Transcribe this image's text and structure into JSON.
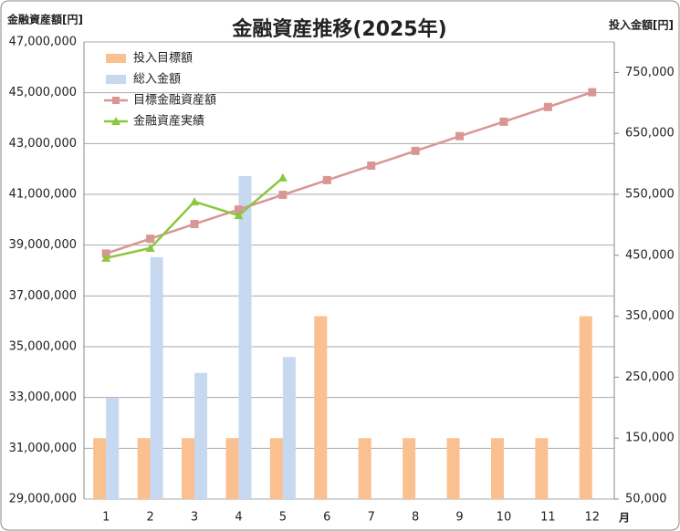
{
  "chart_data": {
    "type": "bar_line",
    "title": "金融資産推移(2025年)",
    "y_label": "金融資産額[円]",
    "y2_label": "投入金額[円]",
    "x_label": "月",
    "categories": [
      "1",
      "2",
      "3",
      "4",
      "5",
      "6",
      "7",
      "8",
      "9",
      "10",
      "11",
      "12"
    ],
    "ylim": [
      29000000,
      47000000
    ],
    "yticks": [
      {
        "value": 29000000,
        "label": "29,000,000"
      },
      {
        "value": 31000000,
        "label": "31,000,000"
      },
      {
        "value": 33000000,
        "label": "33,000,000"
      },
      {
        "value": 35000000,
        "label": "35,000,000"
      },
      {
        "value": 37000000,
        "label": "37,000,000"
      },
      {
        "value": 39000000,
        "label": "39,000,000"
      },
      {
        "value": 41000000,
        "label": "41,000,000"
      },
      {
        "value": 43000000,
        "label": "43,000,000"
      },
      {
        "value": 45000000,
        "label": "45,000,000"
      },
      {
        "value": 47000000,
        "label": "47,000,000"
      }
    ],
    "y2lim": [
      50000,
      800000
    ],
    "y2ticks": [
      {
        "value": 50000,
        "label": "50,000"
      },
      {
        "value": 150000,
        "label": "150,000"
      },
      {
        "value": 250000,
        "label": "250,000"
      },
      {
        "value": 350000,
        "label": "350,000"
      },
      {
        "value": 450000,
        "label": "450,000"
      },
      {
        "value": 550000,
        "label": "550,000"
      },
      {
        "value": 650000,
        "label": "650,000"
      },
      {
        "value": 750000,
        "label": "750,000"
      }
    ],
    "grid": true,
    "series": [
      {
        "name": "投入目標額",
        "type": "bar",
        "axis": "y2",
        "color": "#fac090",
        "values": [
          150000,
          150000,
          150000,
          150000,
          150000,
          350000,
          150000,
          150000,
          150000,
          150000,
          150000,
          350000
        ]
      },
      {
        "name": "総入金額",
        "type": "bar",
        "axis": "y2",
        "color": "#c6d9f1",
        "values": [
          216000,
          447000,
          257000,
          580000,
          283000,
          null,
          null,
          null,
          null,
          null,
          null,
          null
        ]
      },
      {
        "name": "目標金融資産額",
        "type": "line",
        "marker": "square",
        "color": "#d99694",
        "values": [
          38670000,
          39250000,
          39830000,
          40400000,
          40980000,
          41560000,
          42130000,
          42710000,
          43290000,
          43860000,
          44440000,
          45020000
        ]
      },
      {
        "name": "金融資産実績",
        "type": "line",
        "marker": "triangle",
        "color": "#8dc63f",
        "values": [
          38490000,
          38880000,
          40710000,
          40170000,
          41650000,
          null,
          null,
          null,
          null,
          null,
          null,
          null
        ]
      }
    ]
  }
}
